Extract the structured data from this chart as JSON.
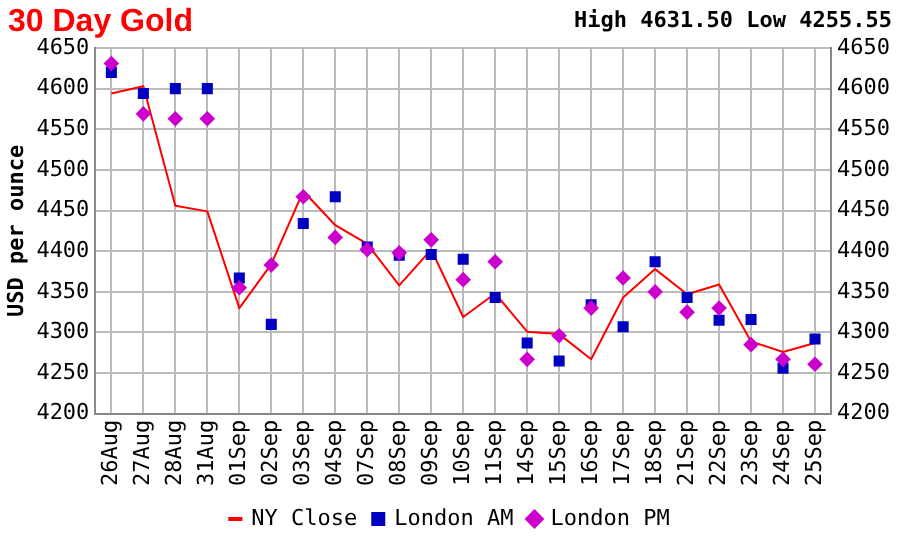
{
  "chart_data": {
    "type": "line",
    "title": "30 Day Gold",
    "annotations": [
      "High 4631.50 Low 4255.55"
    ],
    "ylabel": "USD per ounce",
    "categories": [
      "26Aug",
      "27Aug",
      "28Aug",
      "31Aug",
      "01Sep",
      "02Sep",
      "03Sep",
      "04Sep",
      "07Sep",
      "08Sep",
      "09Sep",
      "10Sep",
      "11Sep",
      "14Sep",
      "15Sep",
      "16Sep",
      "17Sep",
      "18Sep",
      "21Sep",
      "22Sep",
      "23Sep",
      "24Sep",
      "25Sep"
    ],
    "series": [
      {
        "name": "NY Close",
        "color": "#ff0000",
        "marker": "none",
        "values": [
          4594,
          4603,
          4456,
          4449,
          4330,
          4384,
          4474,
          4432,
          4409,
          4358,
          4402,
          4319,
          4348,
          4301,
          4298,
          4267,
          4343,
          4378,
          4347,
          4359,
          4289,
          4276,
          4287
        ]
      },
      {
        "name": "London AM",
        "type": "scatter",
        "color": "#0000c0",
        "marker": "square",
        "values": [
          4620,
          4594,
          4600,
          4600,
          4367,
          4310,
          4434,
          4467,
          4405,
          4395,
          4396,
          4390,
          4343,
          4287,
          4265,
          4334,
          4307,
          4387,
          4343,
          4315,
          4316,
          4256,
          4292
        ]
      },
      {
        "name": "London PM",
        "type": "scatter",
        "color": "#cc00cc",
        "marker": "diamond",
        "values": [
          4631,
          4569,
          4563,
          4563,
          4355,
          4383,
          4467,
          4417,
          4402,
          4398,
          4414,
          4365,
          4387,
          4267,
          4296,
          4330,
          4367,
          4350,
          4325,
          4330,
          4285,
          4267,
          4261
        ]
      }
    ],
    "ylim": [
      4200,
      4650
    ],
    "yticks": [
      4200,
      4250,
      4300,
      4350,
      4400,
      4450,
      4500,
      4550,
      4600,
      4650
    ],
    "y2lim": [
      4200,
      4650
    ],
    "y2ticks": [
      4200,
      4250,
      4300,
      4350,
      4400,
      4450,
      4500,
      4550,
      4600,
      4650
    ],
    "grid": true,
    "legend": "bottom"
  }
}
